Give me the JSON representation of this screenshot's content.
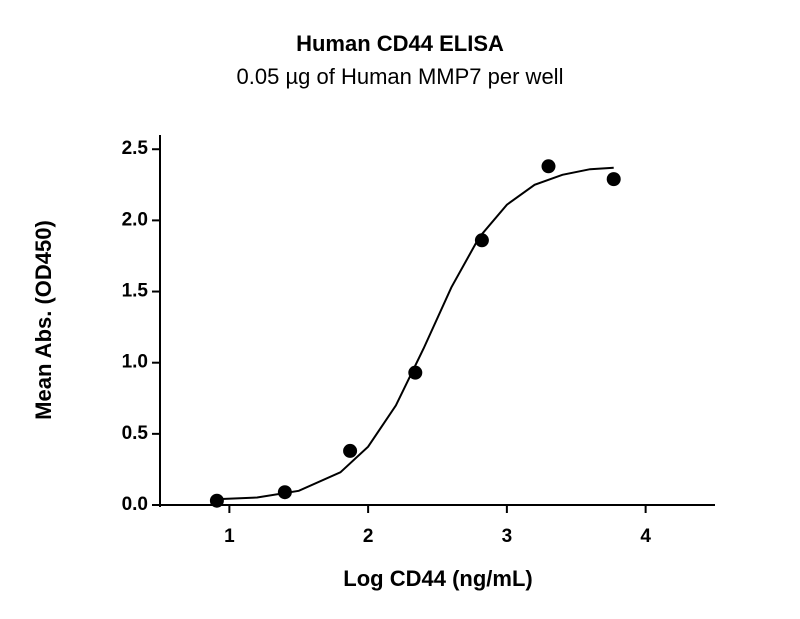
{
  "chart_data": {
    "type": "scatter",
    "title": "Human CD44 ELISA",
    "subtitle": "0.05 µg of Human MMP7 per well",
    "x_label": "Log CD44 (ng/mL)",
    "y_label": "Mean  Abs. (OD450)",
    "xlim": [
      0.5,
      4.5
    ],
    "xticks": [
      1,
      2,
      3,
      4
    ],
    "ylim": [
      0,
      2.6
    ],
    "yticks": [
      {
        "value": 0,
        "label": "0.0"
      },
      0.5,
      {
        "value": 1,
        "label": "1.0"
      },
      1.5,
      {
        "value": 2,
        "label": "2.0"
      },
      2.5
    ],
    "series": [
      {
        "color": "#000000",
        "x": [
          0.91,
          1.4,
          1.87,
          2.34,
          2.82,
          3.3,
          3.77
        ],
        "values": [
          0.03,
          0.09,
          0.38,
          0.93,
          1.86,
          2.38,
          2.29
        ]
      }
    ],
    "fit": {
      "color": "#000000",
      "x": [
        0.9,
        1.2,
        1.5,
        1.8,
        2.0,
        2.2,
        2.4,
        2.6,
        2.8,
        3.0,
        3.2,
        3.4,
        3.6,
        3.77
      ],
      "values": [
        0.04,
        0.053,
        0.1,
        0.23,
        0.41,
        0.7,
        1.1,
        1.53,
        1.88,
        2.11,
        2.25,
        2.32,
        2.36,
        2.37
      ]
    }
  }
}
